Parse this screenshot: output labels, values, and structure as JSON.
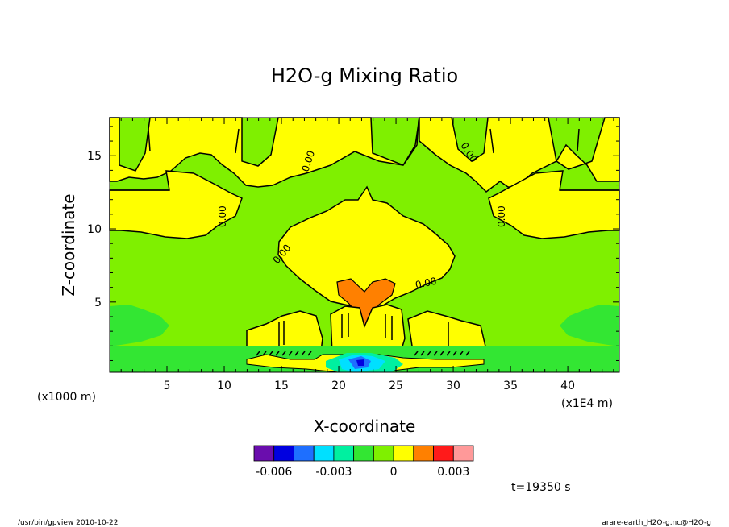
{
  "chart_data": {
    "type": "heatmap",
    "title": "H2O-g Mixing Ratio",
    "xlabel": "X-coordinate",
    "ylabel": "Z-coordinate",
    "x_unit_left": "(x1000 m)",
    "x_unit_right": "(x1E4 m)",
    "xlim": [
      0,
      44.5
    ],
    "ylim": [
      0.2,
      17.6
    ],
    "x_ticks": [
      5,
      10,
      15,
      20,
      25,
      30,
      35,
      40
    ],
    "y_ticks": [
      5,
      10,
      15
    ],
    "contour_labels": [
      "0.00",
      "0.00",
      "0.00",
      "0.00",
      "0.00",
      "0.00",
      "0.00",
      "0.00"
    ],
    "colorbar": {
      "colors": [
        "#6a0dad",
        "#0000e0",
        "#1e6fff",
        "#00e0ff",
        "#00f0a0",
        "#33e633",
        "#7ff000",
        "#ffff00",
        "#ff8000",
        "#ff1a1a",
        "#ff9999"
      ],
      "tick_labels": [
        "-0.006",
        "-0.003",
        "0",
        "0.003"
      ]
    },
    "time_label": "t=19350 s"
  },
  "footer": {
    "left": "/usr/bin/gpview  2010-10-22",
    "right": "arare-earth_H2O-g.nc@H2O-g"
  }
}
